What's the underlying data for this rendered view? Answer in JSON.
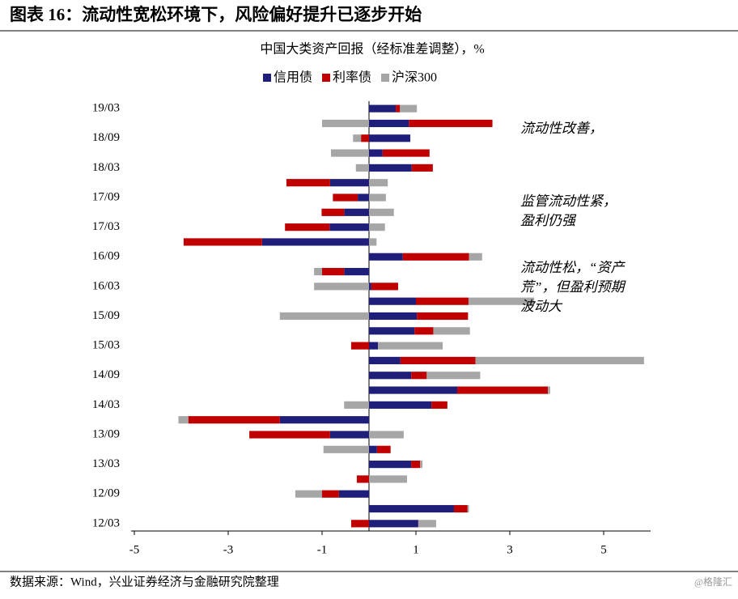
{
  "header": {
    "title": "图表 16：流动性宽松环境下，风险偏好提升已逐步开始"
  },
  "chart_data": {
    "type": "stacked-barh",
    "title": "中国大类资产回报（经标准差调整），%",
    "categories": [
      "19/03",
      null,
      "18/09",
      null,
      "18/03",
      null,
      "17/09",
      null,
      "17/03",
      null,
      "16/09",
      null,
      "16/03",
      null,
      "15/09",
      null,
      "15/03",
      null,
      "14/09",
      null,
      "14/03",
      null,
      "13/09",
      null,
      "13/03",
      null,
      "12/09",
      null,
      "12/03"
    ],
    "series": [
      {
        "name": "信用债",
        "color": "#1f1f7a",
        "values": [
          0.57,
          0.85,
          0.88,
          0.29,
          0.91,
          -0.83,
          -0.24,
          -0.53,
          -0.84,
          -2.28,
          0.72,
          -0.53,
          0.05,
          1.0,
          1.02,
          0.97,
          0.19,
          0.67,
          0.9,
          1.88,
          1.33,
          -1.9,
          -0.83,
          0.17,
          0.9,
          0,
          -0.64,
          1.81,
          1.05
        ]
      },
      {
        "name": "利率债",
        "color": "#c00000",
        "values": [
          0.09,
          1.78,
          -0.17,
          1.0,
          0.45,
          -0.93,
          -0.53,
          -0.48,
          -0.95,
          -1.67,
          1.41,
          -0.47,
          0.57,
          1.12,
          1.09,
          0.4,
          -0.38,
          1.6,
          0.33,
          1.93,
          0.34,
          -1.95,
          -1.72,
          0.29,
          0.19,
          -0.26,
          -0.36,
          0.29,
          -0.38
        ]
      },
      {
        "name": "沪深300",
        "color": "#a6a6a6",
        "values": [
          0.36,
          -1.0,
          -0.17,
          -0.81,
          -0.28,
          0.4,
          0.36,
          0.53,
          0.34,
          0.16,
          0.28,
          -0.17,
          -1.17,
          1.4,
          -1.9,
          0.78,
          1.38,
          3.59,
          1.14,
          0.05,
          -0.53,
          -0.21,
          0.74,
          -0.97,
          0.05,
          0.81,
          -0.57,
          0.03,
          0.38
        ]
      }
    ],
    "xlim": [
      -5,
      6
    ],
    "xticks": [
      -5,
      -3,
      -1,
      1,
      3,
      5
    ],
    "annotations": [
      [
        "流动性改善，"
      ],
      [
        "监管流动性紧，",
        "盈利仍强"
      ],
      [
        "流动性松，“资产",
        "荒”，但盈利预期",
        "波动大"
      ]
    ]
  },
  "footer": {
    "source": "数据来源：Wind，兴业证券经济与金融研究院整理",
    "watermark": "@格隆汇"
  }
}
